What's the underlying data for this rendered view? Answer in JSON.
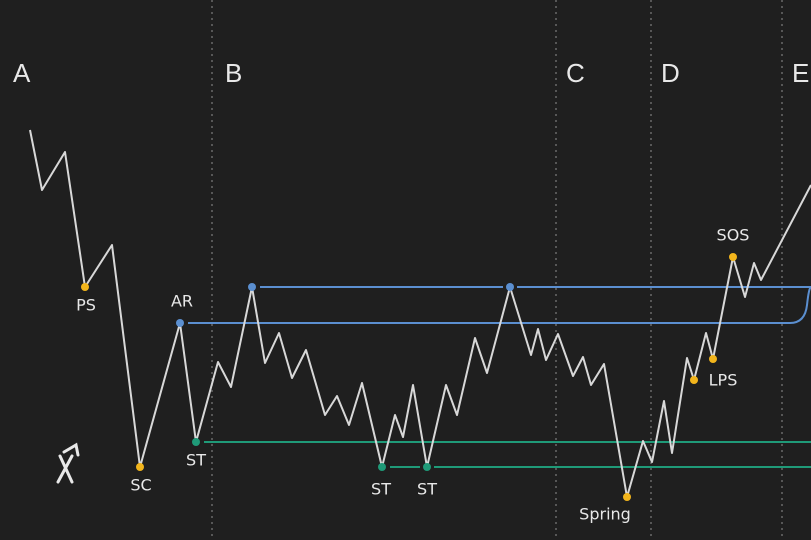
{
  "phases": [
    "A",
    "B",
    "C",
    "D",
    "E"
  ],
  "events": [
    "PS",
    "SC",
    "AR",
    "ST",
    "ST",
    "ST",
    "Spring",
    "LPS",
    "SOS"
  ]
}
